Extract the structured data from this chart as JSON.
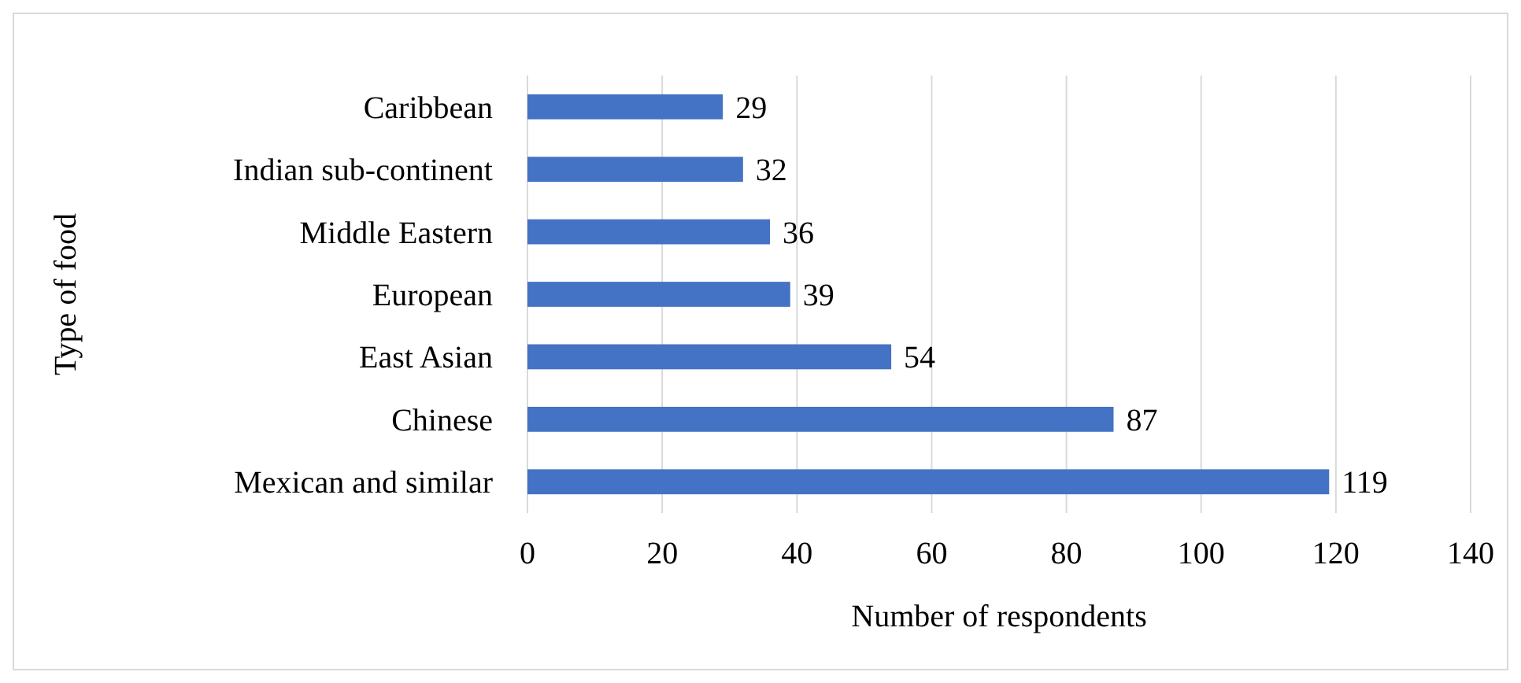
{
  "chart_data": {
    "type": "bar",
    "orientation": "horizontal",
    "xlabel": "Number of respondents",
    "ylabel": "Type of food",
    "categories": [
      "Caribbean",
      "Indian sub-continent",
      "Middle Eastern",
      "European",
      "East Asian",
      "Chinese",
      "Mexican and similar"
    ],
    "values": [
      29,
      32,
      36,
      39,
      54,
      87,
      119
    ],
    "color": "#4472c4",
    "xlim": [
      0,
      140
    ],
    "xticks": [
      0,
      20,
      40,
      60,
      80,
      100,
      120,
      140
    ],
    "grid": "x",
    "data_labels": true
  }
}
